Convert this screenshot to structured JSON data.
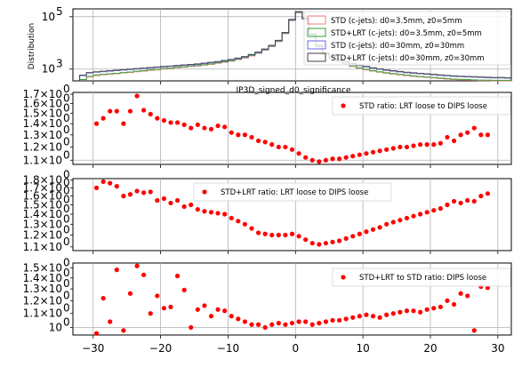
{
  "chart_data": [
    {
      "type": "histogram",
      "ylabel": "Distribution",
      "xlabel": "IP3D_signed_d0_significance",
      "yscale": "log",
      "ylim_log10": [
        2.55,
        5.3
      ],
      "y_ticks": [
        {
          "label": "10",
          "exp": "3",
          "log10": 3
        },
        {
          "label": "10",
          "exp": "5",
          "log10": 5
        }
      ],
      "grid": true,
      "legend_position": "upper-right",
      "bins": [
        -32,
        -31,
        -30,
        -29,
        -28,
        -27,
        -26,
        -25,
        -24,
        -23,
        -22,
        -21,
        -20,
        -19,
        -18,
        -17,
        -16,
        -15,
        -14,
        -13,
        -12,
        -11,
        -10,
        -9,
        -8,
        -7,
        -6,
        -5,
        -4,
        -3,
        -2,
        -1,
        0,
        1,
        2,
        3,
        4,
        5,
        6,
        7,
        8,
        9,
        10,
        11,
        12,
        13,
        14,
        15,
        16,
        17,
        18,
        19,
        20,
        21,
        22,
        23,
        24,
        25,
        26,
        27,
        28,
        29,
        30,
        31,
        32
      ],
      "series": [
        {
          "name": "STD (c-jets): d0=3.5mm, z0=5mm",
          "color": "#f08080",
          "log10_values": [
            2.6,
            2.7,
            2.75,
            2.78,
            2.8,
            2.82,
            2.85,
            2.87,
            2.9,
            2.92,
            2.95,
            2.97,
            3.0,
            3.02,
            3.05,
            3.07,
            3.1,
            3.12,
            3.15,
            3.18,
            3.22,
            3.26,
            3.3,
            3.36,
            3.42,
            3.5,
            3.6,
            3.72,
            3.86,
            4.05,
            4.35,
            4.85,
            5.15,
            4.9,
            4.3,
            3.85,
            3.55,
            3.4,
            3.28,
            3.18,
            3.1,
            3.03,
            2.97,
            2.92,
            2.88,
            2.84,
            2.81,
            2.78,
            2.75,
            2.72,
            2.7,
            2.68,
            2.66,
            2.64,
            2.62,
            2.6,
            2.59,
            2.58,
            2.57,
            2.56,
            2.56,
            2.55,
            2.55,
            2.55
          ]
        },
        {
          "name": "STD+LRT (c-jets): d0=3.5mm, z0=5mm",
          "color": "#2ca02c",
          "log10_values": [
            2.6,
            2.72,
            2.78,
            2.8,
            2.82,
            2.84,
            2.87,
            2.89,
            2.92,
            2.94,
            2.97,
            2.99,
            3.02,
            3.04,
            3.07,
            3.09,
            3.12,
            3.14,
            3.17,
            3.2,
            3.24,
            3.28,
            3.32,
            3.38,
            3.44,
            3.52,
            3.62,
            3.74,
            3.88,
            4.07,
            4.37,
            4.87,
            5.17,
            4.92,
            4.32,
            3.87,
            3.57,
            3.42,
            3.3,
            3.2,
            3.12,
            3.05,
            2.99,
            2.94,
            2.9,
            2.86,
            2.83,
            2.8,
            2.77,
            2.74,
            2.72,
            2.7,
            2.68,
            2.66,
            2.64,
            2.62,
            2.61,
            2.6,
            2.59,
            2.58,
            2.58,
            2.57,
            2.57,
            2.57
          ]
        },
        {
          "name": "STD (c-jets): d0=30mm, z0=30mm",
          "color": "#6a6ae0",
          "log10_values": [
            2.75,
            2.85,
            2.88,
            2.9,
            2.92,
            2.94,
            2.96,
            2.98,
            3.0,
            3.02,
            3.04,
            3.06,
            3.08,
            3.1,
            3.12,
            3.14,
            3.16,
            3.18,
            3.21,
            3.24,
            3.27,
            3.31,
            3.35,
            3.4,
            3.46,
            3.54,
            3.63,
            3.75,
            3.89,
            4.08,
            4.38,
            4.88,
            5.18,
            4.93,
            4.33,
            3.89,
            3.6,
            3.46,
            3.35,
            3.26,
            3.19,
            3.13,
            3.08,
            3.03,
            2.99,
            2.95,
            2.92,
            2.89,
            2.86,
            2.84,
            2.82,
            2.8,
            2.78,
            2.76,
            2.74,
            2.72,
            2.71,
            2.7,
            2.69,
            2.68,
            2.67,
            2.66,
            2.66,
            2.65
          ]
        },
        {
          "name": "STD+LRT (c-jets): d0=30mm, z0=30mm",
          "color": "#404040",
          "log10_values": [
            2.77,
            2.87,
            2.9,
            2.92,
            2.94,
            2.96,
            2.98,
            3.0,
            3.02,
            3.04,
            3.06,
            3.08,
            3.1,
            3.12,
            3.14,
            3.16,
            3.18,
            3.2,
            3.23,
            3.26,
            3.29,
            3.33,
            3.37,
            3.42,
            3.48,
            3.56,
            3.65,
            3.77,
            3.91,
            4.1,
            4.4,
            4.9,
            5.2,
            4.95,
            4.35,
            3.91,
            3.62,
            3.48,
            3.37,
            3.28,
            3.21,
            3.15,
            3.1,
            3.05,
            3.01,
            2.97,
            2.94,
            2.91,
            2.88,
            2.86,
            2.84,
            2.82,
            2.8,
            2.78,
            2.76,
            2.74,
            2.73,
            2.72,
            2.71,
            2.7,
            2.69,
            2.68,
            2.68,
            2.67
          ]
        }
      ]
    },
    {
      "type": "scatter",
      "legend": "STD ratio: LRT loose to DIPS loose",
      "legend_position": "upper-right",
      "yscale": "log",
      "ylim": [
        1.07,
        1.72
      ],
      "grid": true,
      "y_ticks": [
        1.1,
        1.2,
        1.3,
        1.4,
        1.5,
        1.6,
        1.7
      ],
      "x": [
        -29.5,
        -28.5,
        -27.5,
        -26.5,
        -25.5,
        -24.5,
        -23.5,
        -22.5,
        -21.5,
        -20.5,
        -19.5,
        -18.5,
        -17.5,
        -16.5,
        -15.5,
        -14.5,
        -13.5,
        -12.5,
        -11.5,
        -10.5,
        -9.5,
        -8.5,
        -7.5,
        -6.5,
        -5.5,
        -4.5,
        -3.5,
        -2.5,
        -1.5,
        -0.5,
        0.5,
        1.5,
        2.5,
        3.5,
        4.5,
        5.5,
        6.5,
        7.5,
        8.5,
        9.5,
        10.5,
        11.5,
        12.5,
        13.5,
        14.5,
        15.5,
        16.5,
        17.5,
        18.5,
        19.5,
        20.5,
        21.5,
        22.5,
        23.5,
        24.5,
        25.5,
        26.5,
        27.5,
        28.5
      ],
      "y": [
        1.4,
        1.45,
        1.52,
        1.52,
        1.4,
        1.52,
        1.68,
        1.53,
        1.49,
        1.45,
        1.43,
        1.41,
        1.41,
        1.39,
        1.36,
        1.39,
        1.36,
        1.35,
        1.38,
        1.37,
        1.32,
        1.3,
        1.3,
        1.28,
        1.25,
        1.24,
        1.22,
        1.2,
        1.2,
        1.18,
        1.15,
        1.12,
        1.1,
        1.09,
        1.1,
        1.11,
        1.11,
        1.12,
        1.13,
        1.14,
        1.15,
        1.16,
        1.17,
        1.18,
        1.19,
        1.2,
        1.2,
        1.21,
        1.22,
        1.22,
        1.22,
        1.23,
        1.28,
        1.25,
        1.3,
        1.32,
        1.36,
        1.3,
        1.3
      ]
    },
    {
      "type": "scatter",
      "legend": "STD+LRT ratio: LRT loose to DIPS loose",
      "legend_position": "upper-center",
      "yscale": "log",
      "ylim": [
        1.07,
        1.82
      ],
      "grid": true,
      "y_ticks": [
        1.1,
        1.2,
        1.3,
        1.4,
        1.5,
        1.6,
        1.7,
        1.8
      ],
      "x": [
        -29.5,
        -28.5,
        -27.5,
        -26.5,
        -25.5,
        -24.5,
        -23.5,
        -22.5,
        -21.5,
        -20.5,
        -19.5,
        -18.5,
        -17.5,
        -16.5,
        -15.5,
        -14.5,
        -13.5,
        -12.5,
        -11.5,
        -10.5,
        -9.5,
        -8.5,
        -7.5,
        -6.5,
        -5.5,
        -4.5,
        -3.5,
        -2.5,
        -1.5,
        -0.5,
        0.5,
        1.5,
        2.5,
        3.5,
        4.5,
        5.5,
        6.5,
        7.5,
        8.5,
        9.5,
        10.5,
        11.5,
        12.5,
        13.5,
        14.5,
        15.5,
        16.5,
        17.5,
        18.5,
        19.5,
        20.5,
        21.5,
        22.5,
        23.5,
        24.5,
        25.5,
        26.5,
        27.5,
        28.5
      ],
      "y": [
        1.7,
        1.78,
        1.76,
        1.72,
        1.6,
        1.62,
        1.66,
        1.64,
        1.65,
        1.55,
        1.57,
        1.52,
        1.55,
        1.48,
        1.5,
        1.45,
        1.43,
        1.42,
        1.41,
        1.4,
        1.36,
        1.33,
        1.3,
        1.26,
        1.22,
        1.21,
        1.2,
        1.2,
        1.2,
        1.21,
        1.19,
        1.16,
        1.13,
        1.12,
        1.13,
        1.14,
        1.15,
        1.17,
        1.19,
        1.21,
        1.23,
        1.25,
        1.27,
        1.3,
        1.32,
        1.34,
        1.36,
        1.38,
        1.4,
        1.42,
        1.44,
        1.46,
        1.5,
        1.54,
        1.52,
        1.55,
        1.54,
        1.6,
        1.63
      ]
    },
    {
      "type": "scatter",
      "legend": "STD+LRT to STD ratio: DIPS loose",
      "legend_position": "upper-right",
      "yscale": "log",
      "ylim": [
        0.95,
        1.55
      ],
      "grid": true,
      "y_ticks": [
        1.0,
        1.1,
        1.2,
        1.3,
        1.4,
        1.5
      ],
      "x_ticks": [
        -30,
        -20,
        -10,
        0,
        10,
        20,
        30
      ],
      "xlim": [
        -33,
        32
      ],
      "x": [
        -29.5,
        -28.5,
        -27.5,
        -26.5,
        -25.5,
        -24.5,
        -23.5,
        -22.5,
        -21.5,
        -20.5,
        -19.5,
        -18.5,
        -17.5,
        -16.5,
        -15.5,
        -14.5,
        -13.5,
        -12.5,
        -11.5,
        -10.5,
        -9.5,
        -8.5,
        -7.5,
        -6.5,
        -5.5,
        -4.5,
        -3.5,
        -2.5,
        -1.5,
        -0.5,
        0.5,
        1.5,
        2.5,
        3.5,
        4.5,
        5.5,
        6.5,
        7.5,
        8.5,
        9.5,
        10.5,
        11.5,
        12.5,
        13.5,
        14.5,
        15.5,
        16.5,
        17.5,
        18.5,
        19.5,
        20.5,
        21.5,
        22.5,
        23.5,
        24.5,
        25.5,
        26.5,
        27.5,
        28.5
      ],
      "y": [
        0.96,
        1.22,
        1.04,
        1.48,
        0.98,
        1.26,
        1.52,
        1.43,
        1.1,
        1.24,
        1.14,
        1.15,
        1.42,
        1.29,
        1.0,
        1.13,
        1.16,
        1.08,
        1.13,
        1.12,
        1.08,
        1.06,
        1.04,
        1.02,
        1.02,
        1.0,
        1.02,
        1.03,
        1.02,
        1.03,
        1.04,
        1.04,
        1.02,
        1.03,
        1.04,
        1.05,
        1.05,
        1.06,
        1.07,
        1.08,
        1.09,
        1.08,
        1.07,
        1.09,
        1.1,
        1.11,
        1.12,
        1.12,
        1.11,
        1.13,
        1.14,
        1.15,
        1.2,
        1.17,
        1.26,
        1.24,
        0.98,
        1.32,
        1.31
      ]
    }
  ]
}
